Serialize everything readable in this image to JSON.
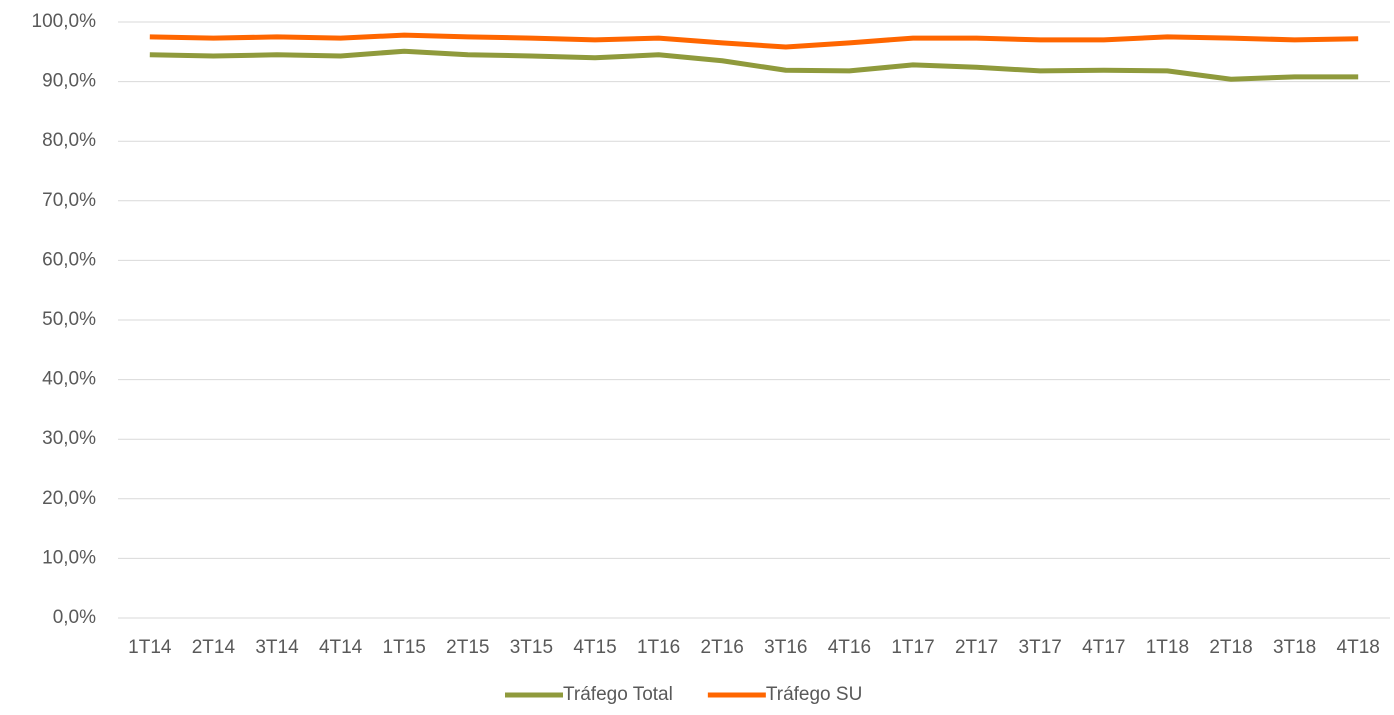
{
  "chart_data": {
    "type": "line",
    "categories": [
      "1T14",
      "2T14",
      "3T14",
      "4T14",
      "1T15",
      "2T15",
      "3T15",
      "4T15",
      "1T16",
      "2T16",
      "3T16",
      "4T16",
      "1T17",
      "2T17",
      "3T17",
      "4T17",
      "1T18",
      "2T18",
      "3T18",
      "4T18"
    ],
    "series": [
      {
        "name": "Tráfego Total",
        "color": "#8f9a3c",
        "values": [
          94.5,
          94.3,
          94.5,
          94.3,
          95.1,
          94.5,
          94.3,
          94.0,
          94.5,
          93.5,
          91.9,
          91.8,
          92.8,
          92.4,
          91.8,
          91.9,
          91.8,
          90.4,
          90.8,
          90.8
        ]
      },
      {
        "name": "Tráfego SU",
        "color": "#ff6600",
        "values": [
          97.5,
          97.3,
          97.5,
          97.3,
          97.8,
          97.5,
          97.3,
          97.0,
          97.3,
          96.5,
          95.8,
          96.5,
          97.3,
          97.3,
          97.0,
          97.0,
          97.5,
          97.3,
          97.0,
          97.2
        ]
      }
    ],
    "ylim": [
      0,
      100
    ],
    "yticks": [
      {
        "value": 0,
        "label": "0,0%"
      },
      {
        "value": 10,
        "label": "10,0%"
      },
      {
        "value": 20,
        "label": "20,0%"
      },
      {
        "value": 30,
        "label": "30,0%"
      },
      {
        "value": 40,
        "label": "40,0%"
      },
      {
        "value": 50,
        "label": "50,0%"
      },
      {
        "value": 60,
        "label": "60,0%"
      },
      {
        "value": 70,
        "label": "70,0%"
      },
      {
        "value": 80,
        "label": "80,0%"
      },
      {
        "value": 90,
        "label": "90,0%"
      },
      {
        "value": 100,
        "label": "100,0%"
      }
    ],
    "grid": true,
    "legend": "bottom"
  }
}
